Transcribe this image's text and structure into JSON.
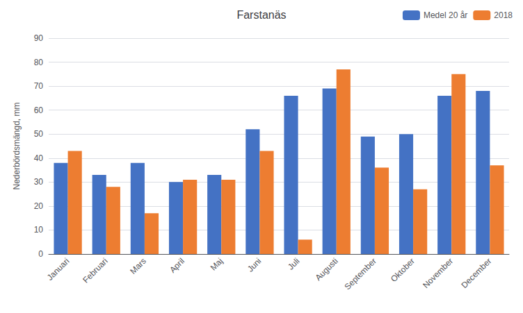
{
  "chart_data": {
    "type": "bar",
    "title": "Farstanäs",
    "ylabel": "Nederbördsmängd, mm",
    "categories": [
      "Januari",
      "Februari",
      "Mars",
      "April",
      "Maj",
      "Juni",
      "Juli",
      "Augusti",
      "September",
      "Oktober",
      "November",
      "December"
    ],
    "series": [
      {
        "name": "Medel 20 år",
        "color": "#4472C4",
        "values": [
          38,
          33,
          38,
          30,
          33,
          52,
          66,
          69,
          49,
          50,
          66,
          68
        ]
      },
      {
        "name": "2018",
        "color": "#ED7D31",
        "values": [
          43,
          28,
          17,
          31,
          31,
          43,
          6,
          77,
          36,
          27,
          75,
          37
        ]
      }
    ],
    "ylim": [
      0,
      90
    ],
    "yticks": [
      0,
      10,
      20,
      30,
      40,
      50,
      60,
      70,
      80,
      90
    ],
    "grid": true,
    "legend": "upper right"
  }
}
